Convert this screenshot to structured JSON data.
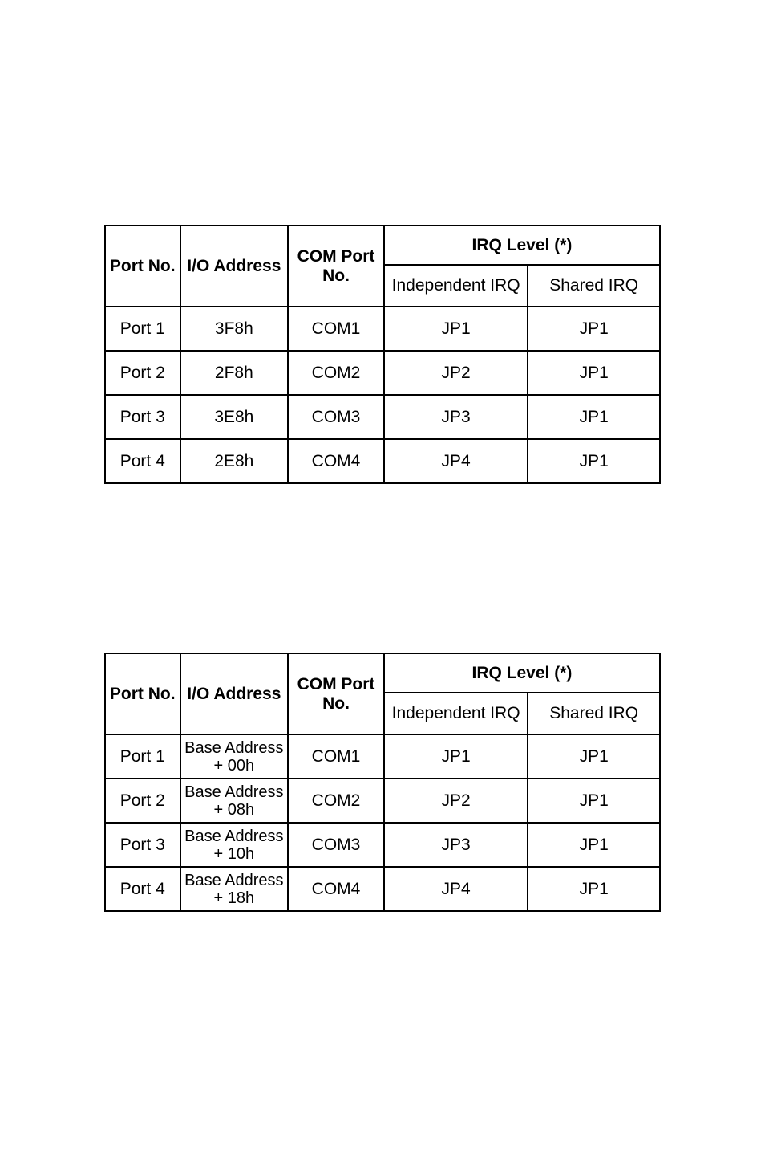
{
  "table1": {
    "headers": {
      "port_no": "Port No.",
      "io_address": "I/O Address",
      "com_port_line1": "COM Port",
      "com_port_line2": "No.",
      "irq_level": "IRQ Level (*)",
      "independent_irq": "Independent IRQ",
      "shared_irq": "Shared IRQ"
    },
    "rows": [
      {
        "port": "Port 1",
        "io": "3F8h",
        "com": "COM1",
        "ind": "JP1",
        "sh": "JP1"
      },
      {
        "port": "Port 2",
        "io": "2F8h",
        "com": "COM2",
        "ind": "JP2",
        "sh": "JP1"
      },
      {
        "port": "Port 3",
        "io": "3E8h",
        "com": "COM3",
        "ind": "JP3",
        "sh": "JP1"
      },
      {
        "port": "Port 4",
        "io": "2E8h",
        "com": "COM4",
        "ind": "JP4",
        "sh": "JP1"
      }
    ]
  },
  "table2": {
    "headers": {
      "port_no": "Port No.",
      "io_address": "I/O Address",
      "com_port_line1": "COM Port",
      "com_port_line2": "No.",
      "irq_level": "IRQ Level (*)",
      "independent_irq": "Independent IRQ",
      "shared_irq": "Shared IRQ"
    },
    "rows": [
      {
        "port": "Port 1",
        "io_l1": "Base Address",
        "io_l2": "+ 00h",
        "com": "COM1",
        "ind": "JP1",
        "sh": "JP1"
      },
      {
        "port": "Port 2",
        "io_l1": "Base Address",
        "io_l2": "+ 08h",
        "com": "COM2",
        "ind": "JP2",
        "sh": "JP1"
      },
      {
        "port": "Port 3",
        "io_l1": "Base Address",
        "io_l2": "+ 10h",
        "com": "COM3",
        "ind": "JP3",
        "sh": "JP1"
      },
      {
        "port": "Port 4",
        "io_l1": "Base Address",
        "io_l2": "+ 18h",
        "com": "COM4",
        "ind": "JP4",
        "sh": "JP1"
      }
    ]
  }
}
